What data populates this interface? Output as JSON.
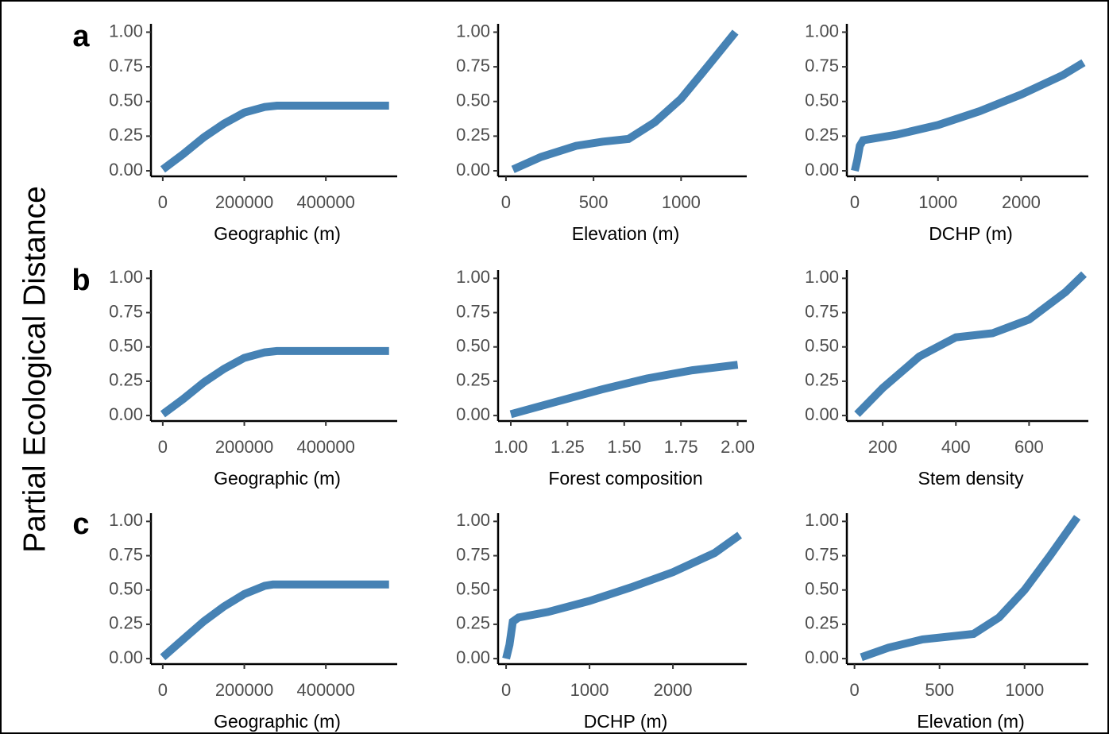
{
  "figure": {
    "ylabel": "Partial Ecological Distance",
    "panel_labels": [
      "a",
      "b",
      "c"
    ]
  },
  "chart_data": [
    {
      "type": "line",
      "xlabel": "Geographic (m)",
      "color": "#4682b4",
      "x": [
        0,
        50000,
        100000,
        150000,
        200000,
        250000,
        280000,
        555000
      ],
      "y": [
        0.01,
        0.12,
        0.24,
        0.34,
        0.42,
        0.46,
        0.47,
        0.47
      ],
      "xlim": [
        -29000,
        575000
      ],
      "xticks": [
        0,
        200000,
        400000
      ],
      "ylim": [
        -0.04,
        1.06
      ],
      "yticks": [
        {
          "value": 0,
          "label": "0.00"
        },
        {
          "value": 0.25,
          "label": "0.25"
        },
        {
          "value": 0.5,
          "label": "0.50"
        },
        {
          "value": 0.75,
          "label": "0.75"
        },
        {
          "value": 1,
          "label": "1.00"
        }
      ]
    },
    {
      "type": "line",
      "xlabel": "Elevation (m)",
      "color": "#4682b4",
      "x": [
        40,
        200,
        400,
        550,
        700,
        850,
        1000,
        1150,
        1310
      ],
      "y": [
        0.01,
        0.1,
        0.18,
        0.21,
        0.23,
        0.35,
        0.52,
        0.75,
        1.0
      ],
      "xlim": [
        -45,
        1375
      ],
      "xticks": [
        0,
        500,
        1000
      ],
      "ylim": [
        -0.04,
        1.06
      ],
      "yticks": [
        {
          "value": 0,
          "label": "0.00"
        },
        {
          "value": 0.25,
          "label": "0.25"
        },
        {
          "value": 0.5,
          "label": "0.50"
        },
        {
          "value": 0.75,
          "label": "0.75"
        },
        {
          "value": 1,
          "label": "1.00"
        }
      ]
    },
    {
      "type": "line",
      "xlabel": "DCHP (m)",
      "color": "#4682b4",
      "x": [
        0,
        30,
        60,
        100,
        500,
        1000,
        1500,
        2000,
        2500,
        2750
      ],
      "y": [
        0.0,
        0.08,
        0.18,
        0.22,
        0.26,
        0.33,
        0.43,
        0.55,
        0.69,
        0.78
      ],
      "xlim": [
        -96,
        2808
      ],
      "xticks": [
        0,
        1000,
        2000
      ],
      "ylim": [
        -0.04,
        1.06
      ],
      "yticks": [
        {
          "value": 0,
          "label": "0.00"
        },
        {
          "value": 0.25,
          "label": "0.25"
        },
        {
          "value": 0.5,
          "label": "0.50"
        },
        {
          "value": 0.75,
          "label": "0.75"
        },
        {
          "value": 1,
          "label": "1.00"
        }
      ]
    },
    {
      "type": "line",
      "xlabel": "Geographic (m)",
      "color": "#4682b4",
      "x": [
        0,
        50000,
        100000,
        150000,
        200000,
        250000,
        280000,
        555000
      ],
      "y": [
        0.01,
        0.12,
        0.24,
        0.34,
        0.42,
        0.46,
        0.47,
        0.47
      ],
      "xlim": [
        -29000,
        575000
      ],
      "xticks": [
        0,
        200000,
        400000
      ],
      "ylim": [
        -0.04,
        1.06
      ],
      "yticks": [
        {
          "value": 0,
          "label": "0.00"
        },
        {
          "value": 0.25,
          "label": "0.25"
        },
        {
          "value": 0.5,
          "label": "0.50"
        },
        {
          "value": 0.75,
          "label": "0.75"
        },
        {
          "value": 1,
          "label": "1.00"
        }
      ]
    },
    {
      "type": "line",
      "xlabel": "Forest composition",
      "color": "#4682b4",
      "x": [
        1.0,
        1.2,
        1.4,
        1.6,
        1.8,
        2.0
      ],
      "y": [
        0.01,
        0.1,
        0.19,
        0.27,
        0.33,
        0.37
      ],
      "xlim": [
        0.944,
        2.04
      ],
      "xticks": [
        {
          "value": 1,
          "label": "1.00"
        },
        {
          "value": 1.25,
          "label": "1.25"
        },
        {
          "value": 1.5,
          "label": "1.50"
        },
        {
          "value": 1.75,
          "label": "1.75"
        },
        {
          "value": 2,
          "label": "2.00"
        }
      ],
      "ylim": [
        -0.04,
        1.06
      ],
      "yticks": [
        {
          "value": 0,
          "label": "0.00"
        },
        {
          "value": 0.25,
          "label": "0.25"
        },
        {
          "value": 0.5,
          "label": "0.50"
        },
        {
          "value": 0.75,
          "label": "0.75"
        },
        {
          "value": 1,
          "label": "1.00"
        }
      ]
    },
    {
      "type": "line",
      "xlabel": "Stem density",
      "color": "#4682b4",
      "x": [
        130,
        200,
        300,
        400,
        500,
        600,
        700,
        750
      ],
      "y": [
        0.01,
        0.2,
        0.43,
        0.57,
        0.6,
        0.7,
        0.9,
        1.03
      ],
      "xlim": [
        102,
        762
      ],
      "xticks": [
        200,
        400,
        600
      ],
      "ylim": [
        -0.04,
        1.06
      ],
      "yticks": [
        {
          "value": 0,
          "label": "0.00"
        },
        {
          "value": 0.25,
          "label": "0.25"
        },
        {
          "value": 0.5,
          "label": "0.50"
        },
        {
          "value": 0.75,
          "label": "0.75"
        },
        {
          "value": 1,
          "label": "1.00"
        }
      ]
    },
    {
      "type": "line",
      "xlabel": "Geographic (m)",
      "color": "#4682b4",
      "x": [
        0,
        50000,
        100000,
        150000,
        200000,
        250000,
        270000,
        555000
      ],
      "y": [
        0.01,
        0.14,
        0.27,
        0.38,
        0.47,
        0.53,
        0.54,
        0.54
      ],
      "xlim": [
        -29000,
        575000
      ],
      "xticks": [
        0,
        200000,
        400000
      ],
      "ylim": [
        -0.04,
        1.06
      ],
      "yticks": [
        {
          "value": 0,
          "label": "0.00"
        },
        {
          "value": 0.25,
          "label": "0.25"
        },
        {
          "value": 0.5,
          "label": "0.50"
        },
        {
          "value": 0.75,
          "label": "0.75"
        },
        {
          "value": 1,
          "label": "1.00"
        }
      ]
    },
    {
      "type": "line",
      "xlabel": "DCHP (m)",
      "color": "#4682b4",
      "x": [
        0,
        40,
        80,
        150,
        500,
        1000,
        1500,
        2000,
        2500,
        2800
      ],
      "y": [
        0.0,
        0.1,
        0.27,
        0.3,
        0.34,
        0.42,
        0.52,
        0.63,
        0.77,
        0.9
      ],
      "xlim": [
        -96,
        2885
      ],
      "xticks": [
        0,
        1000,
        2000
      ],
      "ylim": [
        -0.04,
        1.06
      ],
      "yticks": [
        {
          "value": 0,
          "label": "0.00"
        },
        {
          "value": 0.25,
          "label": "0.25"
        },
        {
          "value": 0.5,
          "label": "0.50"
        },
        {
          "value": 0.75,
          "label": "0.75"
        },
        {
          "value": 1,
          "label": "1.00"
        }
      ]
    },
    {
      "type": "line",
      "xlabel": "Elevation (m)",
      "color": "#4682b4",
      "x": [
        40,
        200,
        400,
        550,
        700,
        850,
        1000,
        1150,
        1310
      ],
      "y": [
        0.01,
        0.08,
        0.14,
        0.16,
        0.18,
        0.3,
        0.5,
        0.75,
        1.03
      ],
      "xlim": [
        -45,
        1375
      ],
      "xticks": [
        0,
        500,
        1000
      ],
      "ylim": [
        -0.04,
        1.06
      ],
      "yticks": [
        {
          "value": 0,
          "label": "0.00"
        },
        {
          "value": 0.25,
          "label": "0.25"
        },
        {
          "value": 0.5,
          "label": "0.50"
        },
        {
          "value": 0.75,
          "label": "0.75"
        },
        {
          "value": 1,
          "label": "1.00"
        }
      ]
    }
  ]
}
